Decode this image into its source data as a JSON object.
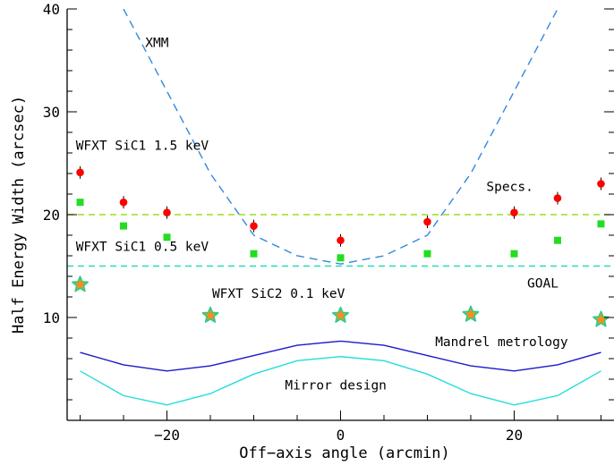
{
  "chart_data": {
    "type": "scatter",
    "xlabel": "Off−axis angle (arcmin)",
    "ylabel": "Half Energy Width (arcsec)",
    "xlim": [
      -31.5,
      31.5
    ],
    "ylim": [
      0,
      40
    ],
    "grid": false,
    "x_ticks": [
      -20,
      0,
      20
    ],
    "y_ticks": [
      10,
      20,
      30,
      40
    ],
    "series": [
      {
        "name": "WFXT SiC1 1.5 keV",
        "marker": "red-circle-with-errorbar",
        "color": "#ff0000",
        "x": [
          -30,
          -25,
          -20,
          -10,
          0,
          10,
          20,
          25,
          30
        ],
        "y": [
          24.1,
          21.2,
          20.2,
          18.9,
          17.5,
          19.3,
          20.2,
          21.6,
          23.0
        ]
      },
      {
        "name": "WFXT SiC1 0.5 keV",
        "marker": "green-square",
        "color": "#22dd22",
        "x": [
          -30,
          -25,
          -20,
          -10,
          0,
          10,
          20,
          25,
          30
        ],
        "y": [
          21.2,
          18.9,
          17.8,
          16.2,
          15.8,
          16.2,
          16.2,
          17.5,
          19.1
        ]
      },
      {
        "name": "WFXT SiC2 0.1 keV",
        "marker": "star",
        "color": "#ff8c1a",
        "edge_color": "#33cc88",
        "x": [
          -30,
          -15,
          0,
          15,
          30
        ],
        "y": [
          13.2,
          10.2,
          10.2,
          10.3,
          9.8
        ]
      },
      {
        "name": "XMM",
        "style": "dashed-line",
        "color": "#3388dd",
        "x": [
          -25,
          -20,
          -15,
          -10,
          -5,
          0,
          5,
          10,
          15,
          20,
          25
        ],
        "y": [
          40,
          32,
          24,
          18,
          16,
          15.2,
          16,
          18,
          24,
          32,
          40
        ]
      },
      {
        "name": "Mandrel metrology",
        "style": "line",
        "color": "#1a1acc",
        "x": [
          -30,
          -25,
          -20,
          -15,
          -10,
          -5,
          0,
          5,
          10,
          15,
          20,
          25,
          30
        ],
        "y": [
          6.6,
          5.4,
          4.8,
          5.3,
          6.3,
          7.3,
          7.7,
          7.3,
          6.3,
          5.3,
          4.8,
          5.4,
          6.6
        ]
      },
      {
        "name": "Mirror design",
        "style": "line",
        "color": "#22dddd",
        "x": [
          -30,
          -25,
          -20,
          -15,
          -10,
          -5,
          0,
          5,
          10,
          15,
          20,
          25,
          30
        ],
        "y": [
          4.8,
          2.4,
          1.5,
          2.6,
          4.5,
          5.8,
          6.2,
          5.8,
          4.5,
          2.6,
          1.5,
          2.4,
          4.8
        ]
      }
    ],
    "hlines": [
      {
        "name": "Specs.",
        "y": 20,
        "color": "#99e01a",
        "style": "dashed"
      },
      {
        "name": "GOAL",
        "y": 15,
        "color": "#22ddbb",
        "style": "dashed"
      }
    ],
    "annotations": [
      {
        "text": "XMM",
        "x": -22.5,
        "y": 36.3
      },
      {
        "text": "WFXT SiC1 1.5 keV",
        "x": -30.5,
        "y": 26.3
      },
      {
        "text": "WFXT SiC1 0.5 keV",
        "x": -30.5,
        "y": 16.5
      },
      {
        "text": "WFXT SiC2 0.1 keV",
        "x": -14.8,
        "y": 11.9
      },
      {
        "text": "Specs.",
        "x": 16.8,
        "y": 22.3
      },
      {
        "text": "GOAL",
        "x": 21.5,
        "y": 12.9
      },
      {
        "text": "Mandrel metrology",
        "x": 10.9,
        "y": 7.2
      },
      {
        "text": "Mirror design",
        "x": -6.4,
        "y": 3.0
      }
    ]
  }
}
